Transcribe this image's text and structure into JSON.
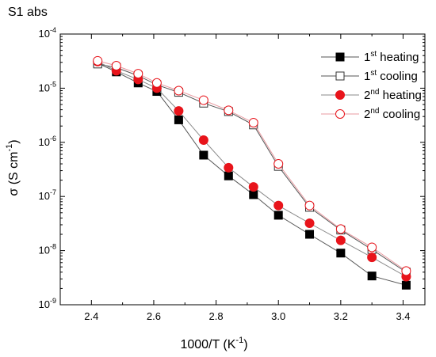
{
  "chart_data": {
    "type": "scatter",
    "title": "S1 abs",
    "xlabel": "1000/T (K⁻¹)",
    "xlabel_parts": {
      "text": "1000/T (K",
      "sup": "-1",
      "close": ")"
    },
    "ylabel_parts": {
      "text": "σ (S cm",
      "sup": "-1",
      "close": ")"
    },
    "xlim": [
      2.3,
      3.47
    ],
    "ylim": [
      1e-09,
      0.0001
    ],
    "yscale": "log",
    "x_ticks": [
      "2.4",
      "2.6",
      "2.8",
      "3.0",
      "3.2",
      "3.4"
    ],
    "x_tick_values": [
      2.4,
      2.6,
      2.8,
      3.0,
      3.2,
      3.4
    ],
    "y_ticks": [
      {
        "base": "10",
        "exp": "-9",
        "value": 1e-09
      },
      {
        "base": "10",
        "exp": "-8",
        "value": 1e-08
      },
      {
        "base": "10",
        "exp": "-7",
        "value": 1e-07
      },
      {
        "base": "10",
        "exp": "-6",
        "value": 1e-06
      },
      {
        "base": "10",
        "exp": "-5",
        "value": 1e-05
      },
      {
        "base": "10",
        "exp": "-4",
        "value": 0.0001
      }
    ],
    "grid": false,
    "legend_position": "top-right",
    "series": [
      {
        "name": "1st heating",
        "label_base": "1",
        "label_sup": "st",
        "label_rest": " heating",
        "marker": "square",
        "filled": true,
        "color": "#000000",
        "line_color": "#555555",
        "x": [
          2.42,
          2.48,
          2.55,
          2.61,
          2.68,
          2.76,
          2.84,
          2.92,
          3.0,
          3.1,
          3.2,
          3.3,
          3.41
        ],
        "y": [
          2.9e-05,
          2e-05,
          1.25e-05,
          8.7e-06,
          2.6e-06,
          5.8e-07,
          2.4e-07,
          1.08e-07,
          4.5e-08,
          2e-08,
          9e-09,
          3.4e-09,
          2.3e-09
        ]
      },
      {
        "name": "1st cooling",
        "label_base": "1",
        "label_sup": "st",
        "label_rest": " cooling",
        "marker": "square",
        "filled": false,
        "color": "#333333",
        "line_color": "#555555",
        "x": [
          2.42,
          2.48,
          2.55,
          2.61,
          2.68,
          2.76,
          2.84,
          2.92,
          3.0,
          3.1,
          3.2,
          3.3,
          3.41
        ],
        "y": [
          2.8e-05,
          2.4e-05,
          1.7e-05,
          1.15e-05,
          8.4e-06,
          5.3e-06,
          3.7e-06,
          2.1e-06,
          3.6e-07,
          6.3e-08,
          2.4e-08,
          1.05e-08,
          4e-09
        ]
      },
      {
        "name": "2nd heating",
        "label_base": "2",
        "label_sup": "nd",
        "label_rest": " heating",
        "marker": "circle",
        "filled": true,
        "color": "#e8141b",
        "line_color": "#8a8a8a",
        "x": [
          2.42,
          2.48,
          2.55,
          2.61,
          2.68,
          2.76,
          2.84,
          2.92,
          3.0,
          3.1,
          3.2,
          3.3,
          3.41
        ],
        "y": [
          3.1e-05,
          2.1e-05,
          1.45e-05,
          1e-05,
          3.8e-06,
          1.1e-06,
          3.4e-07,
          1.5e-07,
          6.8e-08,
          3.2e-08,
          1.55e-08,
          7.5e-09,
          3.3e-09
        ]
      },
      {
        "name": "2nd cooling",
        "label_base": "2",
        "label_sup": "nd",
        "label_rest": " cooling",
        "marker": "circle",
        "filled": false,
        "color": "#e8141b",
        "line_color": "#e89aa0",
        "x": [
          2.42,
          2.48,
          2.55,
          2.61,
          2.68,
          2.76,
          2.84,
          2.92,
          3.0,
          3.1,
          3.2,
          3.3,
          3.41
        ],
        "y": [
          3.2e-05,
          2.6e-05,
          1.85e-05,
          1.25e-05,
          9e-06,
          6e-06,
          3.9e-06,
          2.3e-06,
          4e-07,
          6.8e-08,
          2.5e-08,
          1.15e-08,
          4.2e-09
        ]
      }
    ]
  }
}
